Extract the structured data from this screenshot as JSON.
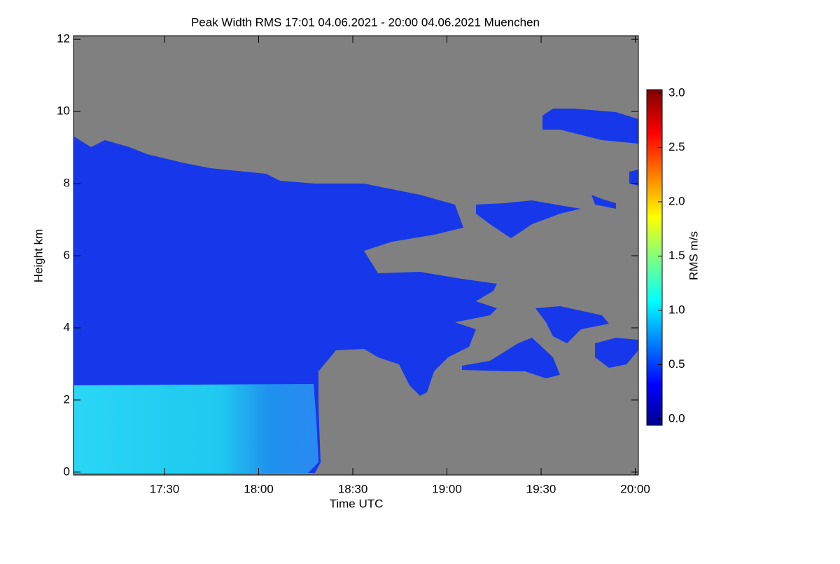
{
  "chart_data": {
    "type": "heatmap",
    "title": "Peak Width RMS   17:01 04.06.2021 - 20:00 04.06.2021 Muenchen",
    "x_label": "Time UTC",
    "y_label": "Height km",
    "xlim": [
      1021,
      1201
    ],
    "xticks": [
      {
        "value": 1050,
        "label": "17:30"
      },
      {
        "value": 1080,
        "label": "18:00"
      },
      {
        "value": 1110,
        "label": "18:30"
      },
      {
        "value": 1140,
        "label": "19:00"
      },
      {
        "value": 1170,
        "label": "19:30"
      },
      {
        "value": 1200,
        "label": "20:00"
      }
    ],
    "ylim": [
      -0.08,
      12.1
    ],
    "yticks": [
      0,
      2,
      4,
      6,
      8,
      10,
      12
    ],
    "colorbar": {
      "label": "RMS m/s",
      "lim": [
        0,
        3
      ],
      "ticks": [
        {
          "value": 0,
          "label": "0.0"
        },
        {
          "value": 0.5,
          "label": "0.5"
        },
        {
          "value": 1,
          "label": "1.0"
        },
        {
          "value": 1.5,
          "label": "1.5"
        },
        {
          "value": 2,
          "label": "2.0"
        },
        {
          "value": 2.5,
          "label": "2.5"
        },
        {
          "value": 3,
          "label": "3.0"
        }
      ]
    }
  }
}
